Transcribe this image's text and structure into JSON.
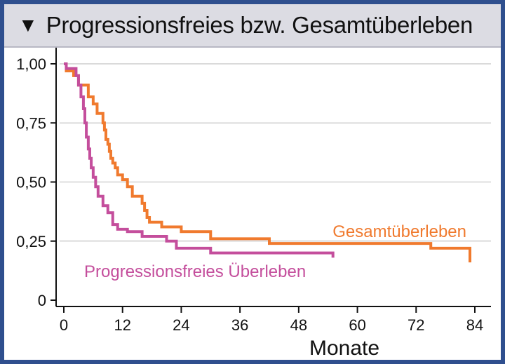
{
  "header": {
    "title": "Progressionsfreies bzw. Gesamtüberleben"
  },
  "chart_data": {
    "type": "line",
    "step": true,
    "xlabel": "Monate",
    "ylabel": "",
    "xlim": [
      0,
      84
    ],
    "ylim": [
      0,
      1
    ],
    "x_ticks": [
      "0",
      "12",
      "24",
      "36",
      "48",
      "60",
      "72",
      "84"
    ],
    "y_ticks": [
      "0",
      "0,25",
      "0,50",
      "0,75",
      "1,00"
    ],
    "grid": "horizontal",
    "series": [
      {
        "name": "Gesamtüberleben",
        "color": "#f07a2e",
        "x": [
          0,
          0.5,
          2,
          3,
          5,
          6,
          6.8,
          8,
          8.3,
          8.6,
          9,
          9.3,
          9.6,
          10,
          10.5,
          11,
          12,
          13,
          14,
          16,
          16.5,
          17,
          17.5,
          20,
          24,
          30,
          42,
          75,
          83
        ],
        "y": [
          1.0,
          0.97,
          0.95,
          0.91,
          0.86,
          0.83,
          0.79,
          0.75,
          0.72,
          0.68,
          0.66,
          0.63,
          0.6,
          0.58,
          0.56,
          0.53,
          0.51,
          0.48,
          0.44,
          0.41,
          0.38,
          0.35,
          0.33,
          0.31,
          0.29,
          0.26,
          0.24,
          0.22,
          0.16
        ]
      },
      {
        "name": "Progressionsfreies Überleben",
        "color": "#c44e9c",
        "x": [
          0,
          0.5,
          2.5,
          3,
          3.5,
          4,
          4.3,
          4.6,
          5,
          5.3,
          5.6,
          6,
          6.5,
          7,
          8,
          9,
          10,
          11,
          13,
          16,
          21,
          23,
          30,
          55
        ],
        "y": [
          1.0,
          0.98,
          0.95,
          0.91,
          0.86,
          0.81,
          0.75,
          0.69,
          0.64,
          0.6,
          0.56,
          0.52,
          0.48,
          0.44,
          0.4,
          0.37,
          0.32,
          0.3,
          0.29,
          0.27,
          0.25,
          0.22,
          0.2,
          0.18
        ]
      }
    ]
  }
}
